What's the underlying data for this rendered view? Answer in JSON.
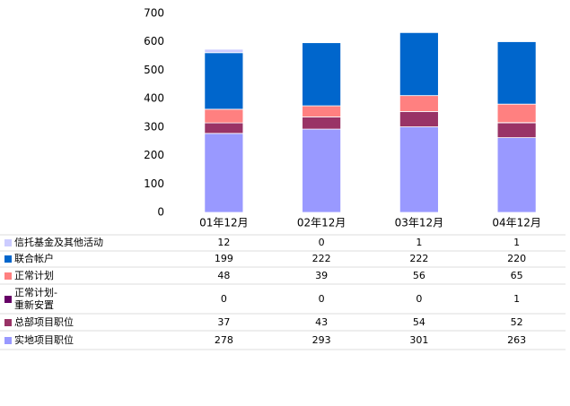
{
  "chart_data": {
    "type": "bar",
    "stacked": true,
    "categories": [
      "01年12月",
      "02年12月",
      "03年12月",
      "04年12月"
    ],
    "series": [
      {
        "name": "信托基金及其他活动",
        "color": "#ccccff",
        "values": [
          12,
          0,
          1,
          1
        ]
      },
      {
        "name": "联合帐户",
        "color": "#0066cc",
        "values": [
          199,
          222,
          222,
          220
        ]
      },
      {
        "name": "正常计划",
        "color": "#ff8080",
        "values": [
          48,
          39,
          56,
          65
        ]
      },
      {
        "name": "正常计划-重新安置",
        "color": "#660066",
        "values": [
          0,
          0,
          0,
          1
        ]
      },
      {
        "name": "总部项目职位",
        "color": "#993366",
        "values": [
          37,
          43,
          54,
          52
        ]
      },
      {
        "name": "实地项目职位",
        "color": "#9999ff",
        "values": [
          278,
          293,
          301,
          263
        ]
      }
    ],
    "ylim": [
      0,
      700
    ],
    "yticks": [
      0,
      100,
      200,
      300,
      400,
      500,
      600,
      700
    ],
    "grid": false
  }
}
